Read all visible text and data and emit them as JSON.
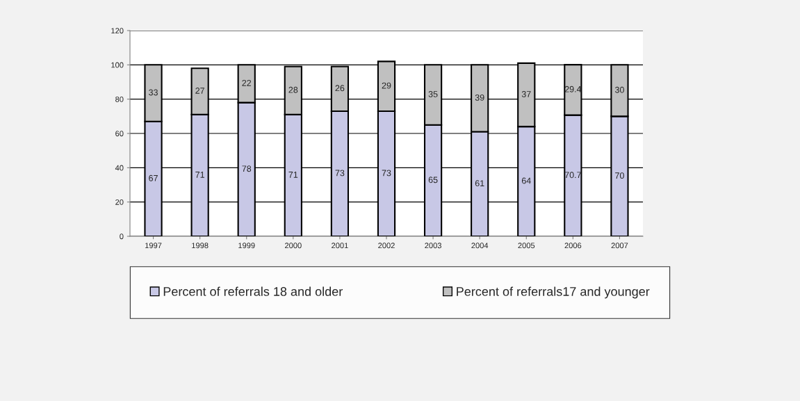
{
  "chart_data": {
    "type": "bar",
    "stacked": true,
    "categories": [
      "1997",
      "1998",
      "1999",
      "2000",
      "2001",
      "2002",
      "2003",
      "2004",
      "2005",
      "2006",
      "2007"
    ],
    "series": [
      {
        "name": "Percent of referrals 18 and older",
        "color": "#c8c8e6",
        "values": [
          67,
          71,
          78,
          71,
          73,
          73,
          65,
          61,
          64,
          70.7,
          70
        ]
      },
      {
        "name": "Percent of referrals17 and younger",
        "color": "#c0c0c0",
        "values": [
          33,
          27,
          22,
          28,
          26,
          29,
          35,
          39,
          37,
          29.4,
          30
        ]
      }
    ],
    "ylim": [
      0,
      120
    ],
    "yticks": [
      0,
      20,
      40,
      60,
      80,
      100,
      120
    ],
    "grid": "y",
    "legend": "bottom",
    "data_labels": true
  }
}
